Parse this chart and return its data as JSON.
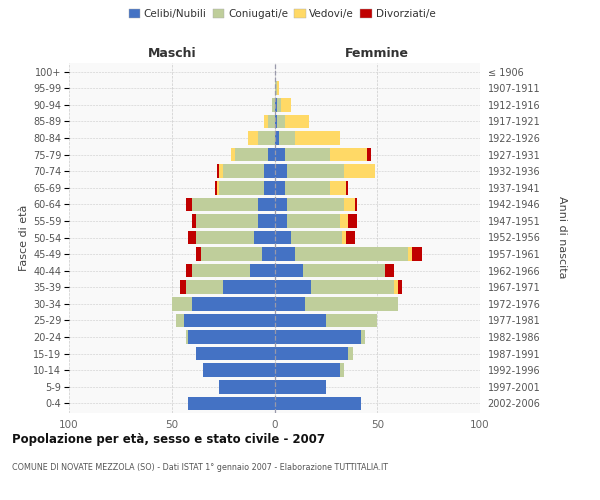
{
  "age_groups": [
    "0-4",
    "5-9",
    "10-14",
    "15-19",
    "20-24",
    "25-29",
    "30-34",
    "35-39",
    "40-44",
    "45-49",
    "50-54",
    "55-59",
    "60-64",
    "65-69",
    "70-74",
    "75-79",
    "80-84",
    "85-89",
    "90-94",
    "95-99",
    "100+"
  ],
  "birth_years": [
    "2002-2006",
    "1997-2001",
    "1992-1996",
    "1987-1991",
    "1982-1986",
    "1977-1981",
    "1972-1976",
    "1967-1971",
    "1962-1966",
    "1957-1961",
    "1952-1956",
    "1947-1951",
    "1942-1946",
    "1937-1941",
    "1932-1936",
    "1927-1931",
    "1922-1926",
    "1917-1921",
    "1912-1916",
    "1907-1911",
    "≤ 1906"
  ],
  "colors": {
    "celibe": "#4472C4",
    "coniugato": "#BFCE9B",
    "vedovo": "#FFD966",
    "divorziato": "#C00000"
  },
  "maschi": {
    "celibe": [
      42,
      27,
      35,
      38,
      42,
      44,
      40,
      25,
      12,
      6,
      10,
      8,
      8,
      5,
      5,
      3,
      0,
      0,
      0,
      0,
      0
    ],
    "coniugato": [
      0,
      0,
      0,
      0,
      1,
      4,
      10,
      18,
      28,
      30,
      28,
      30,
      32,
      22,
      20,
      16,
      8,
      3,
      1,
      0,
      0
    ],
    "vedovo": [
      0,
      0,
      0,
      0,
      0,
      0,
      0,
      0,
      0,
      0,
      0,
      0,
      0,
      1,
      2,
      2,
      5,
      2,
      0,
      0,
      0
    ],
    "divorziato": [
      0,
      0,
      0,
      0,
      0,
      0,
      0,
      3,
      3,
      2,
      4,
      2,
      3,
      1,
      1,
      0,
      0,
      0,
      0,
      0,
      0
    ]
  },
  "femmine": {
    "celibe": [
      42,
      25,
      32,
      36,
      42,
      25,
      15,
      18,
      14,
      10,
      8,
      6,
      6,
      5,
      6,
      5,
      2,
      1,
      1,
      0,
      0
    ],
    "coniugato": [
      0,
      0,
      2,
      2,
      2,
      25,
      45,
      40,
      40,
      55,
      25,
      26,
      28,
      22,
      28,
      22,
      8,
      4,
      2,
      1,
      0
    ],
    "vedovo": [
      0,
      0,
      0,
      0,
      0,
      0,
      0,
      2,
      0,
      2,
      2,
      4,
      5,
      8,
      15,
      18,
      22,
      12,
      5,
      1,
      0
    ],
    "divorziato": [
      0,
      0,
      0,
      0,
      0,
      0,
      0,
      2,
      4,
      5,
      4,
      4,
      1,
      1,
      0,
      2,
      0,
      0,
      0,
      0,
      0
    ]
  },
  "xlim": 100,
  "title": "Popolazione per età, sesso e stato civile - 2007",
  "subtitle": "COMUNE DI NOVATE MEZZOLA (SO) - Dati ISTAT 1° gennaio 2007 - Elaborazione TUTTITALIA.IT",
  "ylabel_left": "Fasce di età",
  "ylabel_right": "Anni di nascita",
  "header_maschi": "Maschi",
  "header_femmine": "Femmine",
  "bg_color": "#f5f5f5"
}
